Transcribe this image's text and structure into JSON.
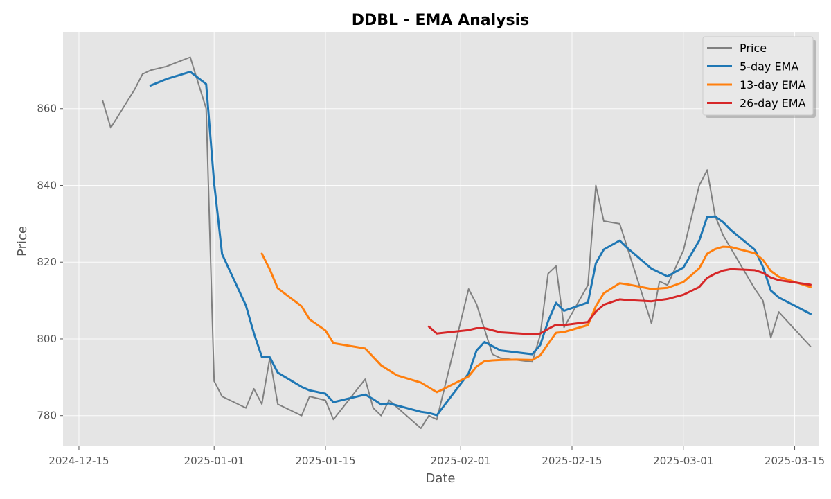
{
  "chart_data": {
    "type": "line",
    "title": "DDBL - EMA Analysis",
    "xlabel": "Date",
    "ylabel": "Price",
    "x_axis_type": "date",
    "xlim": [
      "2024-12-13",
      "2025-03-18"
    ],
    "ylim": [
      772,
      880
    ],
    "x_ticks": [
      "2024-12-15",
      "2025-01-01",
      "2025-01-15",
      "2025-02-01",
      "2025-02-15",
      "2025-03-01",
      "2025-03-15"
    ],
    "x_tick_labels": [
      "2024-12-15",
      "2025-01-01",
      "2025-01-15",
      "2025-02-01",
      "2025-02-15",
      "2025-03-01",
      "2025-03-15"
    ],
    "y_ticks": [
      780,
      800,
      820,
      840,
      860
    ],
    "y_tick_labels": [
      "780",
      "800",
      "820",
      "840",
      "860"
    ],
    "grid": true,
    "legend_position": "top-right",
    "series": [
      {
        "name": "Price",
        "color": "#808080",
        "points": [
          [
            "2024-12-18",
            862
          ],
          [
            "2024-12-19",
            855
          ],
          [
            "2024-12-22",
            865
          ],
          [
            "2024-12-23",
            869
          ],
          [
            "2024-12-24",
            870
          ],
          [
            "2024-12-26",
            871
          ],
          [
            "2024-12-29",
            873.4
          ],
          [
            "2024-12-31",
            860
          ],
          [
            "2025-01-01",
            789
          ],
          [
            "2025-01-02",
            785
          ],
          [
            "2025-01-05",
            782
          ],
          [
            "2025-01-06",
            787
          ],
          [
            "2025-01-07",
            783
          ],
          [
            "2025-01-08",
            795
          ],
          [
            "2025-01-09",
            783
          ],
          [
            "2025-01-12",
            780
          ],
          [
            "2025-01-13",
            785
          ],
          [
            "2025-01-15",
            784
          ],
          [
            "2025-01-16",
            779
          ],
          [
            "2025-01-20",
            789.5
          ],
          [
            "2025-01-21",
            782
          ],
          [
            "2025-01-22",
            780
          ],
          [
            "2025-01-23",
            784
          ],
          [
            "2025-01-27",
            776.7
          ],
          [
            "2025-01-28",
            780
          ],
          [
            "2025-01-29",
            779
          ],
          [
            "2025-02-02",
            813
          ],
          [
            "2025-02-03",
            809
          ],
          [
            "2025-02-05",
            796
          ],
          [
            "2025-02-06",
            795
          ],
          [
            "2025-02-10",
            794
          ],
          [
            "2025-02-11",
            801
          ],
          [
            "2025-02-12",
            817
          ],
          [
            "2025-02-13",
            819
          ],
          [
            "2025-02-14",
            803
          ],
          [
            "2025-02-17",
            814
          ],
          [
            "2025-02-18",
            840
          ],
          [
            "2025-02-19",
            830.7
          ],
          [
            "2025-02-21",
            830
          ],
          [
            "2025-02-25",
            804
          ],
          [
            "2025-02-26",
            815
          ],
          [
            "2025-02-27",
            814
          ],
          [
            "2025-03-01",
            823
          ],
          [
            "2025-03-03",
            840
          ],
          [
            "2025-03-04",
            844
          ],
          [
            "2025-03-05",
            832
          ],
          [
            "2025-03-06",
            827
          ],
          [
            "2025-03-10",
            813
          ],
          [
            "2025-03-11",
            810
          ],
          [
            "2025-03-12",
            800.3
          ],
          [
            "2025-03-13",
            807
          ],
          [
            "2025-03-17",
            798
          ]
        ]
      },
      {
        "name": "5-day EMA",
        "color": "#1f77b4",
        "points": [
          [
            "2024-12-24",
            866
          ],
          [
            "2024-12-26",
            867.7
          ],
          [
            "2024-12-29",
            869.6
          ],
          [
            "2024-12-31",
            866.4
          ],
          [
            "2025-01-01",
            840.6
          ],
          [
            "2025-01-02",
            822.1
          ],
          [
            "2025-01-05",
            808.7
          ],
          [
            "2025-01-06",
            801.5
          ],
          [
            "2025-01-07",
            795.3
          ],
          [
            "2025-01-08",
            795.2
          ],
          [
            "2025-01-09",
            791.2
          ],
          [
            "2025-01-12",
            787.5
          ],
          [
            "2025-01-13",
            786.6
          ],
          [
            "2025-01-15",
            785.7
          ],
          [
            "2025-01-16",
            783.5
          ],
          [
            "2025-01-20",
            785.5
          ],
          [
            "2025-01-21",
            784.3
          ],
          [
            "2025-01-22",
            782.9
          ],
          [
            "2025-01-23",
            783.2
          ],
          [
            "2025-01-27",
            781
          ],
          [
            "2025-01-28",
            780.7
          ],
          [
            "2025-01-29",
            780.1
          ],
          [
            "2025-02-02",
            791
          ],
          [
            "2025-02-03",
            797
          ],
          [
            "2025-02-04",
            799.2
          ],
          [
            "2025-02-05",
            798.1
          ],
          [
            "2025-02-06",
            797
          ],
          [
            "2025-02-10",
            796
          ],
          [
            "2025-02-11",
            798.4
          ],
          [
            "2025-02-12",
            804.6
          ],
          [
            "2025-02-13",
            809.4
          ],
          [
            "2025-02-14",
            807.3
          ],
          [
            "2025-02-17",
            809.5
          ],
          [
            "2025-02-18",
            819.7
          ],
          [
            "2025-02-19",
            823.3
          ],
          [
            "2025-02-21",
            825.6
          ],
          [
            "2025-02-22",
            823.6
          ],
          [
            "2025-02-25",
            818.3
          ],
          [
            "2025-02-27",
            816.3
          ],
          [
            "2025-03-01",
            818.6
          ],
          [
            "2025-03-03",
            825.6
          ],
          [
            "2025-03-04",
            831.8
          ],
          [
            "2025-03-05",
            831.9
          ],
          [
            "2025-03-06",
            830.4
          ],
          [
            "2025-03-07",
            828.3
          ],
          [
            "2025-03-10",
            823.2
          ],
          [
            "2025-03-11",
            818.8
          ],
          [
            "2025-03-12",
            812.6
          ],
          [
            "2025-03-13",
            810.8
          ],
          [
            "2025-03-17",
            806.5
          ]
        ]
      },
      {
        "name": "13-day EMA",
        "color": "#ff7f0e",
        "points": [
          [
            "2025-01-07",
            822.2
          ],
          [
            "2025-01-08",
            818.1
          ],
          [
            "2025-01-09",
            813.2
          ],
          [
            "2025-01-12",
            808.5
          ],
          [
            "2025-01-13",
            805.1
          ],
          [
            "2025-01-15",
            802.2
          ],
          [
            "2025-01-16",
            798.9
          ],
          [
            "2025-01-20",
            797.5
          ],
          [
            "2025-01-21",
            795.3
          ],
          [
            "2025-01-22",
            793.1
          ],
          [
            "2025-01-24",
            790.5
          ],
          [
            "2025-01-27",
            788.6
          ],
          [
            "2025-01-29",
            786.1
          ],
          [
            "2025-01-30",
            787.1
          ],
          [
            "2025-02-02",
            790.2
          ],
          [
            "2025-02-03",
            792.8
          ],
          [
            "2025-02-04",
            794.2
          ],
          [
            "2025-02-05",
            794.4
          ],
          [
            "2025-02-06",
            794.5
          ],
          [
            "2025-02-08",
            794.6
          ],
          [
            "2025-02-10",
            794.5
          ],
          [
            "2025-02-11",
            795.7
          ],
          [
            "2025-02-12",
            798.7
          ],
          [
            "2025-02-13",
            801.6
          ],
          [
            "2025-02-14",
            801.8
          ],
          [
            "2025-02-17",
            803.6
          ],
          [
            "2025-02-18",
            808.5
          ],
          [
            "2025-02-19",
            811.9
          ],
          [
            "2025-02-21",
            814.5
          ],
          [
            "2025-02-22",
            814.2
          ],
          [
            "2025-02-25",
            813
          ],
          [
            "2025-02-27",
            813.3
          ],
          [
            "2025-03-01",
            814.8
          ],
          [
            "2025-03-03",
            818.4
          ],
          [
            "2025-03-04",
            822.2
          ],
          [
            "2025-03-05",
            823.4
          ],
          [
            "2025-03-06",
            824
          ],
          [
            "2025-03-07",
            823.9
          ],
          [
            "2025-03-10",
            822.3
          ],
          [
            "2025-03-11",
            820.6
          ],
          [
            "2025-03-12",
            817.7
          ],
          [
            "2025-03-13",
            816.2
          ],
          [
            "2025-03-17",
            813.5
          ]
        ]
      },
      {
        "name": "26-day EMA",
        "color": "#d62728",
        "points": [
          [
            "2025-01-28",
            803.2
          ],
          [
            "2025-01-29",
            801.4
          ],
          [
            "2025-02-02",
            802.3
          ],
          [
            "2025-02-03",
            802.8
          ],
          [
            "2025-02-04",
            802.8
          ],
          [
            "2025-02-06",
            801.7
          ],
          [
            "2025-02-10",
            801.2
          ],
          [
            "2025-02-11",
            801.4
          ],
          [
            "2025-02-12",
            802.6
          ],
          [
            "2025-02-13",
            803.7
          ],
          [
            "2025-02-14",
            803.6
          ],
          [
            "2025-02-17",
            804.4
          ],
          [
            "2025-02-18",
            807.1
          ],
          [
            "2025-02-19",
            808.9
          ],
          [
            "2025-02-21",
            810.3
          ],
          [
            "2025-02-22",
            810.1
          ],
          [
            "2025-02-25",
            809.8
          ],
          [
            "2025-02-27",
            810.4
          ],
          [
            "2025-03-01",
            811.5
          ],
          [
            "2025-03-03",
            813.5
          ],
          [
            "2025-03-04",
            815.9
          ],
          [
            "2025-03-05",
            817
          ],
          [
            "2025-03-06",
            817.8
          ],
          [
            "2025-03-07",
            818.2
          ],
          [
            "2025-03-10",
            817.9
          ],
          [
            "2025-03-11",
            817.2
          ],
          [
            "2025-03-12",
            816
          ],
          [
            "2025-03-13",
            815.3
          ],
          [
            "2025-03-17",
            814.1
          ]
        ]
      }
    ]
  }
}
